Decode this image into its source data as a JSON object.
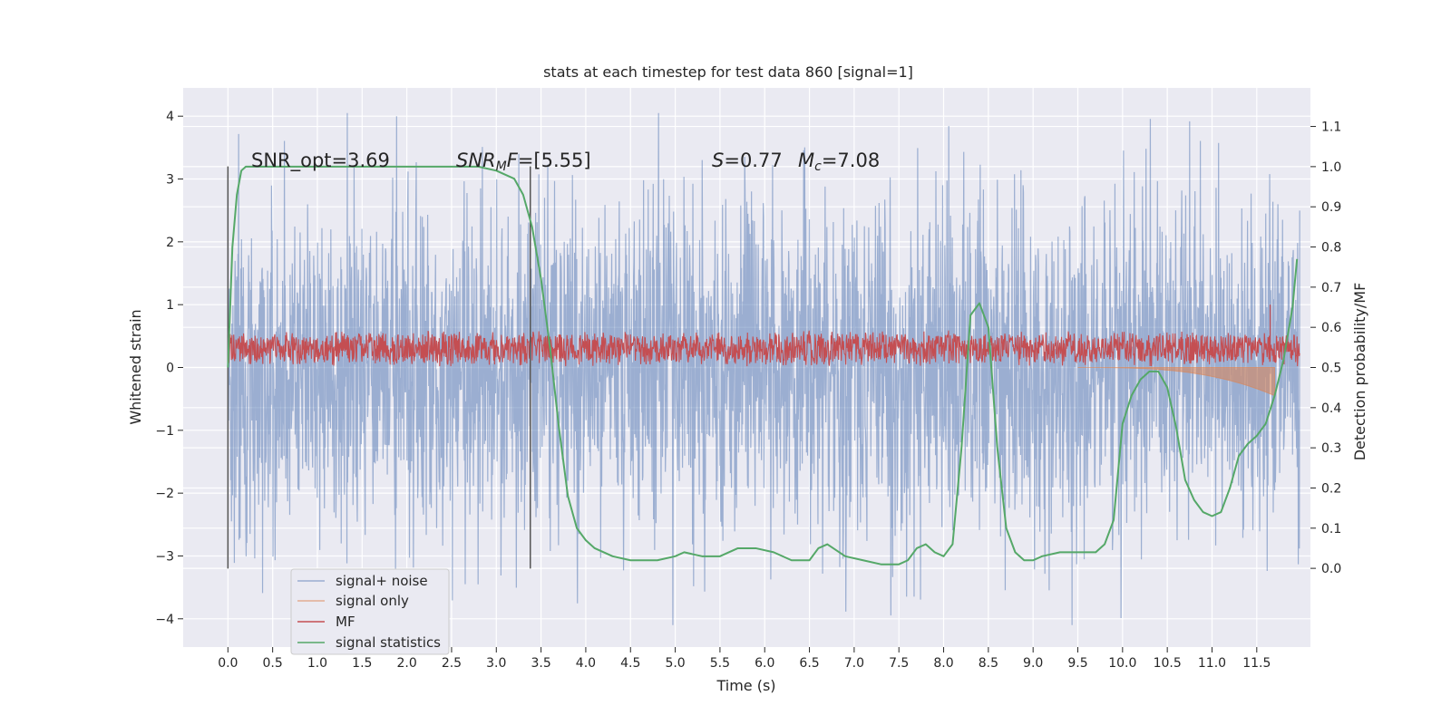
{
  "chart_data": {
    "type": "line",
    "title": "stats at each timestep for test data 860 [signal=1]",
    "xlabel": "Time (s)",
    "ylabel": "Whitened strain",
    "y2label": "Detection probability/MF",
    "xlim": [
      -0.5,
      12.1
    ],
    "ylim": [
      -4.45,
      4.45
    ],
    "y2lim": [
      -0.196,
      1.196
    ],
    "grid": true,
    "xticks": [
      "0.0",
      "0.5",
      "1.0",
      "1.5",
      "2.0",
      "2.5",
      "3.0",
      "3.5",
      "4.0",
      "4.5",
      "5.0",
      "5.5",
      "6.0",
      "6.5",
      "7.0",
      "7.5",
      "8.0",
      "8.5",
      "9.0",
      "9.5",
      "10.0",
      "10.5",
      "11.0",
      "11.5"
    ],
    "yticks": [
      "4",
      "3",
      "2",
      "1",
      "0",
      "−1",
      "−2",
      "−3",
      "−4"
    ],
    "y2ticks": [
      "1.1",
      "1.0",
      "0.9",
      "0.8",
      "0.7",
      "0.6",
      "0.5",
      "0.4",
      "0.3",
      "0.2",
      "0.1",
      "0.0"
    ],
    "annotations": {
      "snr_opt": "SNR_opt=3.69",
      "snr_mf": "SNR_MF=[5.55]",
      "s_value": "S=0.77",
      "mc_value": "M_c=7.08"
    },
    "vlines_x": [
      0.0,
      3.38
    ],
    "vlines_ylim": [
      -3.2,
      3.2
    ],
    "legend_placement": "lower-left",
    "series": [
      {
        "name": "signal+ noise",
        "color": "#4c72b0",
        "envelope_upper": 3.0,
        "envelope_lower": -3.0,
        "x_range": [
          0.0,
          11.98
        ]
      },
      {
        "name": "signal only",
        "color": "#dd8452",
        "x_range": [
          9.5,
          11.7
        ],
        "values_end": -0.45
      },
      {
        "name": "MF",
        "color": "#c44e52",
        "mean": 0.3,
        "amplitude": 0.3,
        "x_range": [
          0.0,
          11.98
        ]
      },
      {
        "name": "signal statistics",
        "color": "#55a868",
        "x": [
          0.0,
          0.05,
          0.1,
          0.15,
          0.2,
          0.3,
          0.5,
          1.0,
          2.0,
          2.5,
          2.8,
          3.0,
          3.2,
          3.3,
          3.4,
          3.5,
          3.6,
          3.7,
          3.8,
          3.9,
          4.0,
          4.1,
          4.3,
          4.5,
          4.7,
          4.8,
          5.0,
          5.1,
          5.3,
          5.5,
          5.7,
          5.9,
          6.1,
          6.3,
          6.5,
          6.6,
          6.7,
          6.9,
          7.1,
          7.3,
          7.5,
          7.6,
          7.7,
          7.8,
          7.9,
          8.0,
          8.1,
          8.2,
          8.3,
          8.4,
          8.5,
          8.6,
          8.7,
          8.8,
          8.9,
          9.0,
          9.1,
          9.3,
          9.5,
          9.7,
          9.8,
          9.9,
          10.0,
          10.1,
          10.2,
          10.3,
          10.4,
          10.5,
          10.6,
          10.7,
          10.8,
          10.9,
          11.0,
          11.1,
          11.2,
          11.3,
          11.4,
          11.5,
          11.6,
          11.7,
          11.8,
          11.9,
          11.95
        ],
        "y": [
          0.5,
          0.8,
          0.93,
          0.99,
          1.0,
          1.0,
          1.0,
          1.0,
          1.0,
          1.0,
          1.0,
          0.99,
          0.97,
          0.93,
          0.85,
          0.72,
          0.55,
          0.35,
          0.18,
          0.1,
          0.07,
          0.05,
          0.03,
          0.02,
          0.02,
          0.02,
          0.03,
          0.04,
          0.03,
          0.03,
          0.05,
          0.05,
          0.04,
          0.02,
          0.02,
          0.05,
          0.06,
          0.03,
          0.02,
          0.01,
          0.01,
          0.02,
          0.05,
          0.06,
          0.04,
          0.03,
          0.06,
          0.3,
          0.63,
          0.66,
          0.6,
          0.3,
          0.1,
          0.04,
          0.02,
          0.02,
          0.03,
          0.04,
          0.04,
          0.04,
          0.06,
          0.12,
          0.36,
          0.43,
          0.47,
          0.49,
          0.49,
          0.45,
          0.35,
          0.22,
          0.17,
          0.14,
          0.13,
          0.14,
          0.2,
          0.28,
          0.31,
          0.33,
          0.36,
          0.43,
          0.52,
          0.65,
          0.77
        ]
      }
    ]
  }
}
